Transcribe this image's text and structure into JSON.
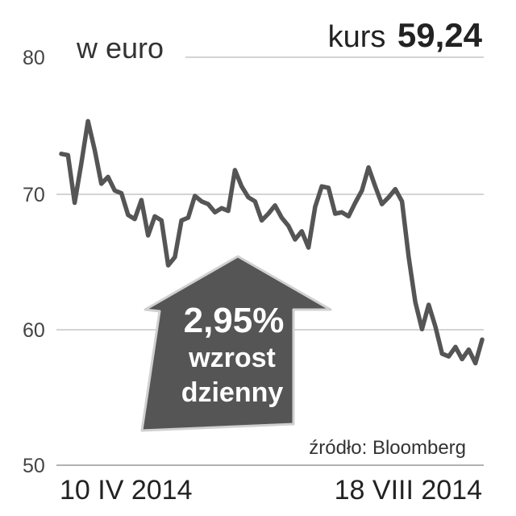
{
  "header": {
    "unit": "w euro",
    "price_label": "kurs",
    "price_value": "59,24"
  },
  "badge": {
    "change": "2,95%",
    "line1": "wzrost",
    "line2": "dzienny"
  },
  "source": "źródło: Bloomberg",
  "colors": {
    "line": "#555555",
    "grid": "#bbbbbb",
    "arrow_fill": "#555555",
    "arrow_outline": "#cccccc"
  },
  "chart_data": {
    "type": "line",
    "x_start_label": "10 IV 2014",
    "x_end_label": "18 VIII 2014",
    "yticks": [
      "80",
      "70",
      "60",
      "50"
    ],
    "ylim": [
      50,
      80
    ],
    "grid": true,
    "series": [
      {
        "values": [
          72.9,
          72.8,
          69.3,
          72.2,
          75.3,
          73.2,
          70.7,
          71.2,
          70.2,
          70.0,
          68.4,
          68.1,
          69.5,
          66.9,
          68.3,
          68.0,
          64.7,
          65.3,
          68.0,
          68.2,
          69.8,
          69.4,
          69.2,
          68.6,
          68.9,
          68.7,
          71.7,
          70.5,
          69.7,
          69.4,
          68.0,
          68.5,
          69.1,
          68.2,
          67.6,
          66.6,
          67.2,
          66.0,
          69.0,
          70.5,
          70.4,
          68.5,
          68.6,
          68.3,
          69.3,
          70.2,
          71.9,
          70.5,
          69.2,
          69.7,
          70.3,
          69.4,
          65.3,
          62.0,
          60.0,
          61.8,
          60.2,
          58.2,
          58.0,
          58.7,
          57.8,
          58.5,
          57.5,
          59.24
        ]
      }
    ]
  }
}
